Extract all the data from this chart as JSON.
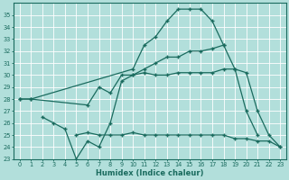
{
  "xlabel": "Humidex (Indice chaleur)",
  "bg_color": "#b2dfdb",
  "grid_color": "#c8e8e4",
  "line_color": "#1a6b5e",
  "xlim": [
    -0.5,
    23.5
  ],
  "ylim": [
    23,
    36
  ],
  "yticks": [
    23,
    24,
    25,
    26,
    27,
    28,
    29,
    30,
    31,
    32,
    33,
    34,
    35
  ],
  "xticks": [
    0,
    1,
    2,
    3,
    4,
    5,
    6,
    7,
    8,
    9,
    10,
    11,
    12,
    13,
    14,
    15,
    16,
    17,
    18,
    19,
    20,
    21,
    22,
    23
  ],
  "line1_x": [
    0,
    1,
    10,
    11,
    12,
    13,
    14,
    15,
    16,
    17,
    18
  ],
  "line1_y": [
    28,
    28,
    30.5,
    32.5,
    33.2,
    34.5,
    35.5,
    35.5,
    35.5,
    34.5,
    32.5
  ],
  "line2_x": [
    0,
    1,
    6,
    7,
    8,
    9,
    10,
    11,
    12,
    13,
    14,
    15,
    16,
    17,
    18,
    19,
    20,
    21
  ],
  "line2_y": [
    28,
    28,
    27.5,
    29.0,
    28.5,
    30.0,
    30.0,
    30.5,
    31.0,
    31.5,
    31.5,
    32.0,
    32.0,
    32.2,
    32.5,
    30.5,
    27.0,
    25.0
  ],
  "line3_x": [
    2,
    3,
    4,
    5,
    6,
    7,
    8,
    9,
    10,
    11,
    12,
    13,
    14,
    15,
    16,
    17,
    18,
    19,
    20,
    21,
    22,
    23
  ],
  "line3_y": [
    26.5,
    26.0,
    25.5,
    23.0,
    24.5,
    24.0,
    26.0,
    29.5,
    30.0,
    30.2,
    30.0,
    30.0,
    30.2,
    30.2,
    30.2,
    30.2,
    30.5,
    30.5,
    30.2,
    27.0,
    25.0,
    24.0
  ],
  "line4_x": [
    5,
    6,
    7,
    8,
    9,
    10,
    11,
    12,
    13,
    14,
    15,
    16,
    17,
    18,
    19,
    20,
    21,
    22,
    23
  ],
  "line4_y": [
    25.0,
    25.2,
    25.0,
    25.0,
    25.0,
    25.2,
    25.0,
    25.0,
    25.0,
    25.0,
    25.0,
    25.0,
    25.0,
    25.0,
    24.7,
    24.7,
    24.5,
    24.5,
    24.0
  ]
}
